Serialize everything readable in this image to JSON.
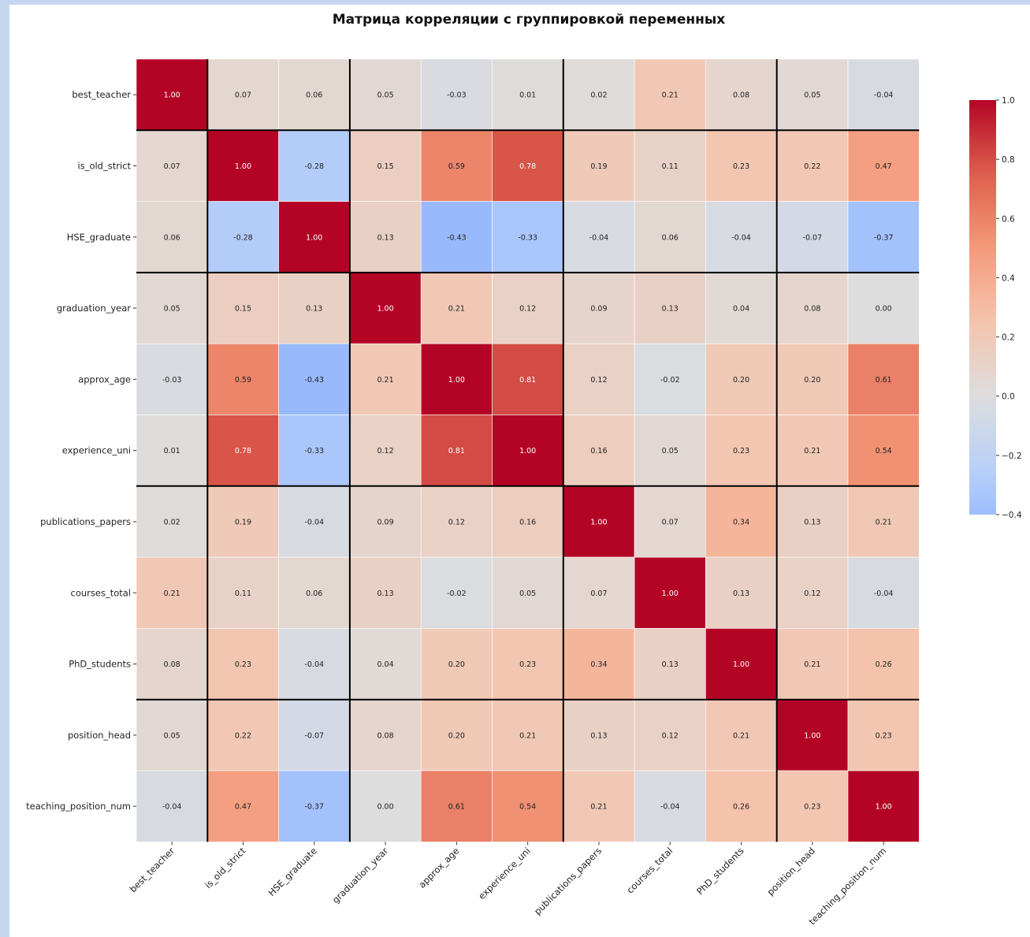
{
  "chart_data": {
    "type": "heatmap",
    "title": "Матрица корреляции с группировкой переменных",
    "variables": [
      "best_teacher",
      "is_old_strict",
      "HSE_graduate",
      "graduation_year",
      "approx_age",
      "experience_uni",
      "publications_papers",
      "courses_total",
      "PhD_students",
      "position_head",
      "teaching_position_num"
    ],
    "x_tick_labels": [
      "best_teacher",
      "is_old_strict",
      "HSE_graduate",
      "graduation_year",
      "approx_age",
      "experience_uni",
      "publications_papers",
      "courses_total",
      "PhD_students",
      "position_head",
      "teaching_position_num"
    ],
    "y_tick_labels": [
      "best_teacher",
      "is_old_strict",
      "HSE_graduate",
      "graduation_year",
      "approx_age",
      "experience_uni",
      "publications_papers",
      "courses_total",
      "PhD_students",
      "position_head",
      "teaching_position_num"
    ],
    "values": [
      [
        1.0,
        0.07,
        0.06,
        0.05,
        -0.03,
        0.01,
        0.02,
        0.21,
        0.08,
        0.05,
        -0.04
      ],
      [
        0.07,
        1.0,
        -0.28,
        0.15,
        0.59,
        0.78,
        0.19,
        0.11,
        0.23,
        0.22,
        0.47
      ],
      [
        0.06,
        -0.28,
        1.0,
        0.13,
        -0.43,
        -0.33,
        -0.04,
        0.06,
        -0.04,
        -0.07,
        -0.37
      ],
      [
        0.05,
        0.15,
        0.13,
        1.0,
        0.21,
        0.12,
        0.09,
        0.13,
        0.04,
        0.08,
        -0.0
      ],
      [
        -0.03,
        0.59,
        -0.43,
        0.21,
        1.0,
        0.81,
        0.12,
        -0.02,
        0.2,
        0.2,
        0.61
      ],
      [
        0.01,
        0.78,
        -0.33,
        0.12,
        0.81,
        1.0,
        0.16,
        0.05,
        0.23,
        0.21,
        0.54
      ],
      [
        0.02,
        0.19,
        -0.04,
        0.09,
        0.12,
        0.16,
        1.0,
        0.07,
        0.34,
        0.13,
        0.21
      ],
      [
        0.21,
        0.11,
        0.06,
        0.13,
        -0.02,
        0.05,
        0.07,
        1.0,
        0.13,
        0.12,
        -0.04
      ],
      [
        0.08,
        0.23,
        -0.04,
        0.04,
        0.2,
        0.23,
        0.34,
        0.13,
        1.0,
        0.21,
        0.26
      ],
      [
        0.05,
        0.22,
        -0.07,
        0.08,
        0.2,
        0.21,
        0.13,
        0.12,
        0.21,
        1.0,
        0.23
      ],
      [
        -0.04,
        0.47,
        -0.37,
        -0.0,
        0.61,
        0.54,
        0.21,
        -0.04,
        0.26,
        0.23,
        1.0
      ]
    ],
    "group_boundaries_after_index": [
      0,
      2,
      5,
      8
    ],
    "colorbar": {
      "colormap": "coolwarm",
      "range": [
        -0.4,
        1.0
      ],
      "center": 0.0,
      "ticks": [
        1.0,
        0.8,
        0.6,
        0.4,
        0.2,
        0.0,
        -0.2,
        -0.4
      ],
      "tick_labels": [
        "1.0",
        "0.8",
        "0.6",
        "0.4",
        "0.2",
        "0.0",
        "−0.2",
        "−0.4"
      ]
    },
    "annotation_format": "0.00",
    "xlabel": "",
    "ylabel": ""
  }
}
